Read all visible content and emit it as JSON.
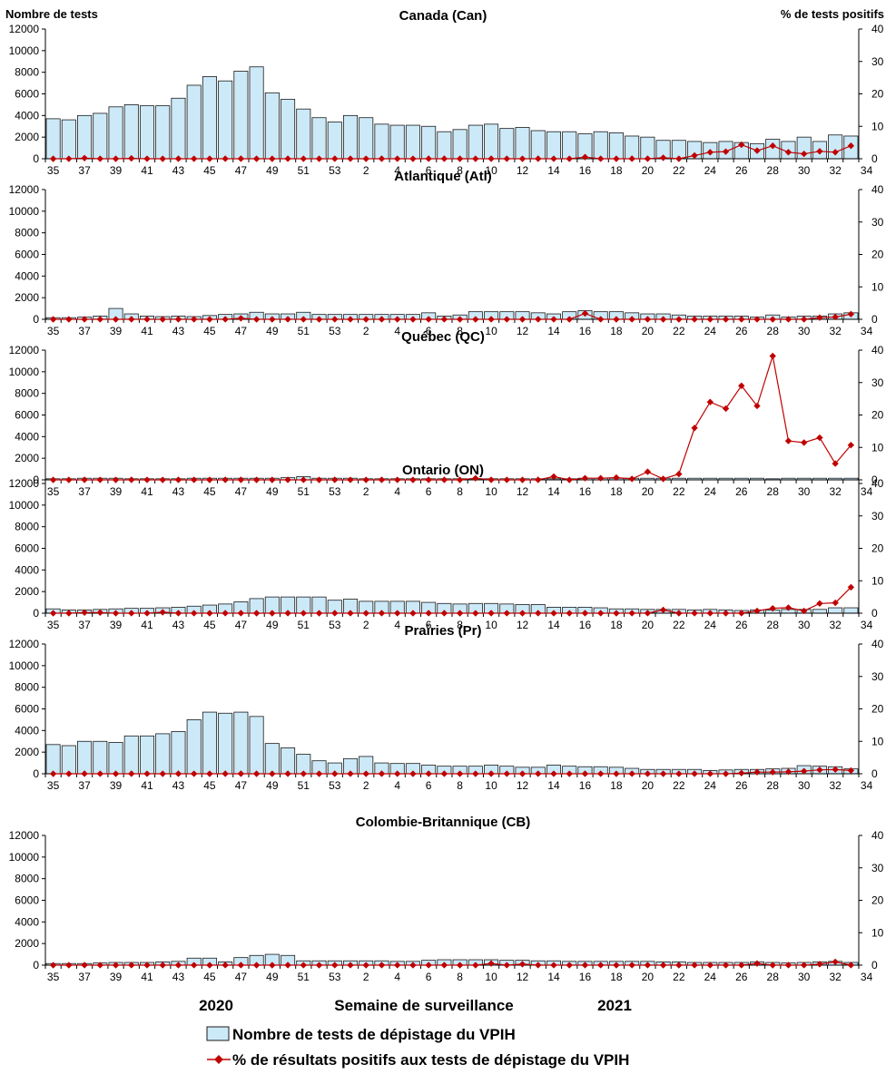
{
  "chart_data": {
    "type": "bar",
    "left_axis_label": "Nombre de tests",
    "right_axis_label": "% de tests positifs",
    "x_label": "Semaine de surveillance",
    "year_labels": [
      "2020",
      "2021"
    ],
    "weeks": [
      35,
      36,
      37,
      38,
      39,
      40,
      41,
      42,
      43,
      44,
      45,
      46,
      47,
      48,
      49,
      50,
      51,
      52,
      53,
      1,
      2,
      3,
      4,
      5,
      6,
      7,
      8,
      9,
      10,
      11,
      12,
      13,
      14,
      15,
      16,
      17,
      18,
      19,
      20,
      21,
      22,
      23,
      24,
      25,
      26,
      27,
      28,
      29,
      30,
      31,
      32,
      33
    ],
    "x_tick_labels": [
      "35",
      "37",
      "39",
      "41",
      "43",
      "45",
      "47",
      "49",
      "51",
      "53",
      "2",
      "4",
      "6",
      "8",
      "10",
      "12",
      "14",
      "16",
      "18",
      "20",
      "22",
      "24",
      "26",
      "28",
      "30",
      "32",
      "34"
    ],
    "left_ylim": [
      0,
      12000
    ],
    "left_yticks": [
      "0",
      "2000",
      "4000",
      "6000",
      "8000",
      "10000",
      "12000"
    ],
    "right_ylim": [
      0,
      40
    ],
    "right_yticks": [
      "0",
      "10",
      "20",
      "30",
      "40"
    ],
    "legend": {
      "bars": "Nombre de tests de dépistage du VPIH",
      "line": "% de résultats positifs aux tests de dépistage du VPIH"
    },
    "colors": {
      "bar_fill": "#cce9f8",
      "bar_stroke": "#1a1a1a",
      "line": "#c00000"
    },
    "panels": [
      {
        "title": "Canada (Can)",
        "tests": [
          3700,
          3600,
          4000,
          4200,
          4800,
          5000,
          4900,
          4900,
          5600,
          6800,
          7600,
          7200,
          8100,
          8500,
          6100,
          5500,
          4600,
          3800,
          3400,
          4000,
          3800,
          3200,
          3100,
          3100,
          3000,
          2500,
          2700,
          3100,
          3200,
          2800,
          2900,
          2600,
          2500,
          2500,
          2300,
          2500,
          2400,
          2100,
          2000,
          1700,
          1700,
          1600,
          1500,
          1600,
          1500,
          1400,
          1800,
          1600,
          2000,
          1600,
          2200,
          2100
        ],
        "pct_positive": [
          0,
          0,
          0.2,
          0,
          0,
          0.1,
          0,
          0,
          0,
          0,
          0,
          0,
          0,
          0,
          0,
          0,
          0,
          0,
          0,
          0,
          0,
          0,
          0,
          0,
          0,
          0,
          0,
          0,
          0,
          0,
          0,
          0,
          0,
          0,
          0.5,
          0,
          0,
          0,
          0,
          0.3,
          0,
          1,
          2,
          2.2,
          4.3,
          2.5,
          4,
          2,
          1.5,
          2.3,
          2,
          4
        ]
      },
      {
        "title": "Atlantique (Atl)",
        "tests": [
          150,
          150,
          200,
          300,
          1000,
          500,
          300,
          250,
          300,
          250,
          350,
          450,
          500,
          650,
          500,
          500,
          650,
          450,
          450,
          450,
          450,
          450,
          450,
          450,
          600,
          300,
          400,
          700,
          700,
          700,
          700,
          600,
          500,
          700,
          800,
          700,
          700,
          600,
          500,
          500,
          400,
          300,
          300,
          300,
          300,
          200,
          400,
          200,
          300,
          300,
          500,
          600
        ],
        "pct_positive": [
          0,
          0,
          0,
          0,
          0,
          0,
          0,
          0,
          0,
          0,
          0,
          0,
          0.3,
          0,
          0,
          0,
          0,
          0,
          0,
          0,
          0,
          0,
          0,
          0,
          0,
          0,
          0,
          0,
          0,
          0,
          0,
          0,
          0,
          0,
          1.8,
          0,
          0,
          0,
          0,
          0,
          0,
          0,
          0,
          0,
          0,
          0,
          0,
          0,
          0,
          0.5,
          0.7,
          1.6
        ]
      },
      {
        "title": "Québec (QC)",
        "tests": [
          100,
          100,
          150,
          150,
          150,
          100,
          100,
          100,
          100,
          150,
          150,
          150,
          150,
          150,
          150,
          200,
          300,
          150,
          150,
          150,
          100,
          100,
          100,
          100,
          100,
          100,
          100,
          100,
          100,
          100,
          100,
          100,
          100,
          100,
          150,
          150,
          150,
          150,
          150,
          150,
          150,
          150,
          150,
          150,
          150,
          150,
          100,
          150,
          150,
          150,
          150,
          150
        ],
        "pct_positive": [
          0,
          0,
          0,
          0,
          0,
          0,
          0,
          0,
          0,
          0,
          0,
          0,
          0,
          0,
          0,
          0,
          0,
          0,
          0,
          0,
          0,
          0,
          0,
          0,
          0,
          0,
          0,
          0.5,
          0,
          0,
          0,
          0,
          1,
          0,
          0.5,
          0.5,
          0.7,
          0.3,
          2.5,
          0.3,
          1.8,
          16,
          24,
          22,
          29,
          22.8,
          38.2,
          12,
          11.5,
          13,
          5,
          10.7
        ]
      },
      {
        "title": "Ontario (ON)",
        "tests": [
          400,
          300,
          300,
          350,
          400,
          450,
          450,
          500,
          550,
          650,
          750,
          850,
          1050,
          1350,
          1500,
          1500,
          1500,
          1500,
          1200,
          1300,
          1100,
          1100,
          1100,
          1100,
          1000,
          900,
          850,
          900,
          900,
          850,
          800,
          800,
          550,
          550,
          550,
          500,
          400,
          400,
          350,
          350,
          350,
          300,
          350,
          300,
          250,
          300,
          300,
          350,
          350,
          350,
          500,
          500
        ],
        "pct_positive": [
          0,
          0,
          0.2,
          0.2,
          0,
          0,
          0,
          0.3,
          0,
          0,
          0,
          0,
          0,
          0,
          0,
          0,
          0,
          0,
          0,
          0,
          0,
          0,
          0,
          0,
          0,
          0,
          0,
          0,
          0,
          0,
          0,
          0,
          0,
          0,
          0,
          0,
          0,
          0,
          0,
          1,
          0,
          0,
          0,
          0,
          0,
          0.7,
          1.5,
          1.7,
          0.7,
          3,
          3.2,
          8
        ]
      },
      {
        "title": "Prairies (Pr)",
        "tests": [
          2700,
          2600,
          3000,
          3000,
          2900,
          3500,
          3500,
          3700,
          3900,
          5000,
          5700,
          5600,
          5700,
          5300,
          2800,
          2400,
          1800,
          1200,
          1000,
          1400,
          1600,
          1000,
          950,
          950,
          800,
          700,
          700,
          700,
          800,
          700,
          600,
          600,
          800,
          700,
          650,
          650,
          600,
          500,
          400,
          400,
          400,
          400,
          300,
          350,
          400,
          400,
          450,
          500,
          750,
          700,
          650,
          450
        ],
        "pct_positive": [
          0,
          0,
          0,
          0,
          0,
          0,
          0,
          0,
          0,
          0,
          0,
          0,
          0,
          0,
          0,
          0,
          0,
          0,
          0,
          0,
          0,
          0,
          0,
          0,
          0,
          0,
          0,
          0,
          0,
          0,
          0,
          0,
          0,
          0,
          0,
          0,
          0,
          0,
          0,
          0,
          0,
          0,
          0,
          0,
          0.2,
          0.5,
          0.5,
          0.6,
          0.8,
          1.2,
          1.3,
          1
        ]
      },
      {
        "title": "Colombie-Britannique (CB)",
        "tests": [
          150,
          150,
          150,
          200,
          250,
          250,
          250,
          300,
          350,
          650,
          650,
          300,
          700,
          900,
          1000,
          900,
          400,
          400,
          400,
          400,
          400,
          400,
          350,
          350,
          450,
          500,
          500,
          500,
          500,
          450,
          450,
          400,
          400,
          350,
          350,
          350,
          350,
          350,
          350,
          300,
          300,
          250,
          250,
          250,
          250,
          300,
          250,
          200,
          250,
          300,
          350,
          250
        ],
        "pct_positive": [
          0,
          0,
          0,
          0,
          0,
          0,
          0,
          0,
          0,
          0,
          0,
          0,
          0,
          0,
          0,
          0,
          0,
          0,
          0,
          0,
          0,
          0,
          0,
          0,
          0,
          0,
          0,
          0,
          0.5,
          0,
          0.3,
          0,
          0,
          0,
          0,
          0,
          0,
          0,
          0,
          0,
          0,
          0,
          0,
          0,
          0,
          0.5,
          0,
          0,
          0,
          0.3,
          1,
          0
        ]
      }
    ]
  }
}
